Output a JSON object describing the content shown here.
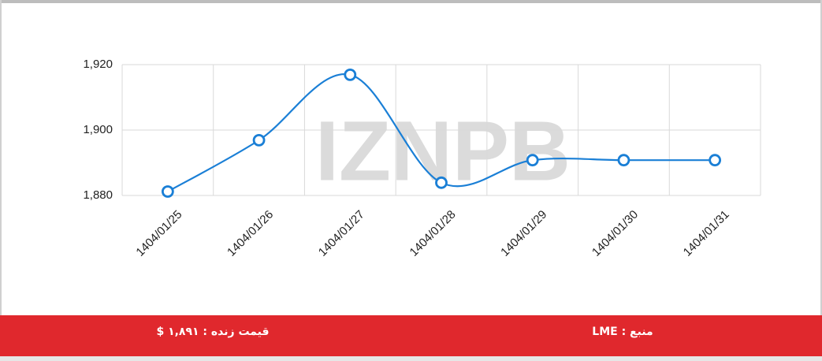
{
  "chart_data": {
    "type": "line",
    "watermark": "IZNPB",
    "categories": [
      "1404/01/25",
      "1404/01/26",
      "1404/01/27",
      "1404/01/28",
      "1404/01/29",
      "1404/01/30",
      "1404/01/31"
    ],
    "series": [
      {
        "color": "#1a7fd6",
        "values": [
          1881.2,
          1896.9,
          1916.9,
          1883.9,
          1890.8,
          1890.8,
          1890.8
        ]
      }
    ],
    "ylim": [
      1880,
      1920
    ],
    "yticks": [
      {
        "value": 1880,
        "label": "1,880"
      },
      {
        "value": 1900,
        "label": "1,900"
      },
      {
        "value": 1920,
        "label": "1,920"
      }
    ],
    "grid": true
  },
  "footer": {
    "live_price": "قیمت زنده : ۱,۸۹۱ $",
    "source": "منبع : LME"
  }
}
